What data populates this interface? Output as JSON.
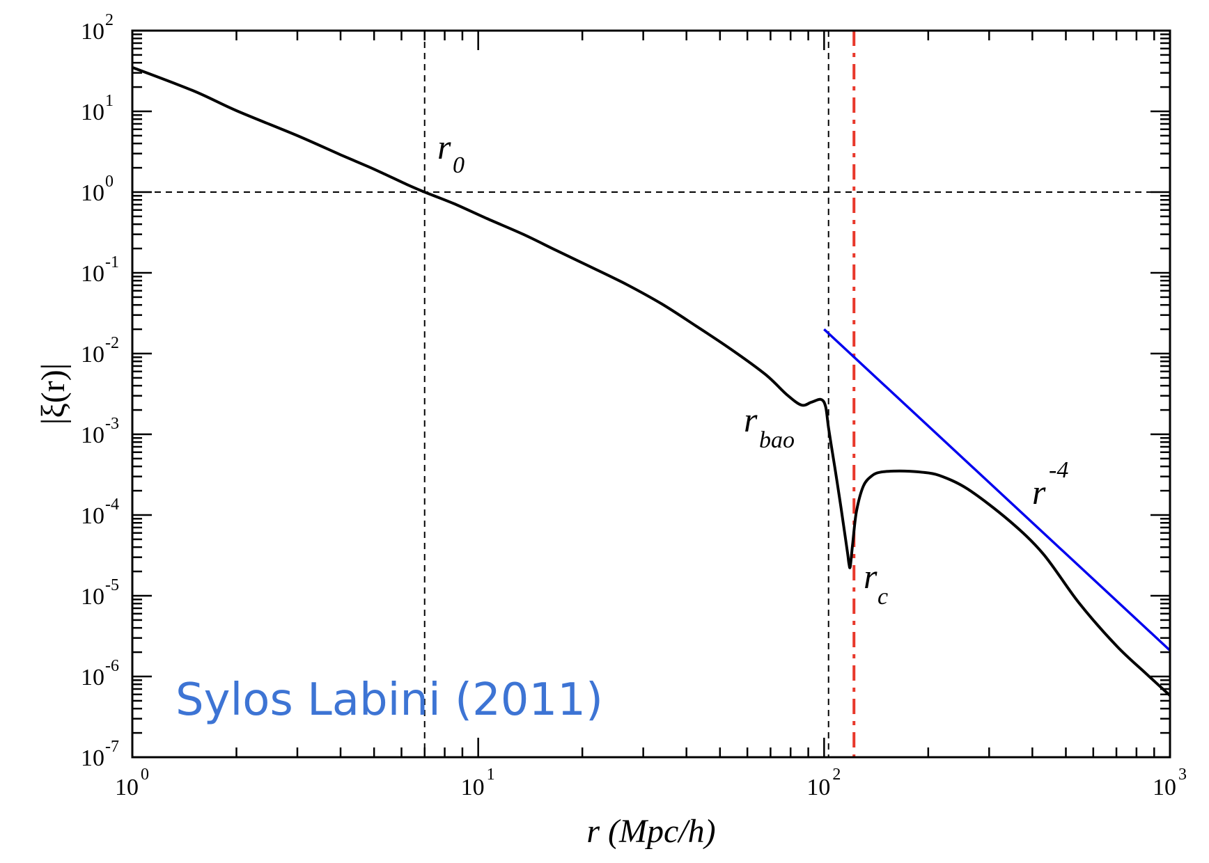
{
  "chart_data": {
    "type": "line",
    "title": "",
    "xlabel": "r (Mpc/h)",
    "ylabel": "|ξ(r)|",
    "xscale": "log",
    "yscale": "log",
    "xlim": [
      1,
      1000
    ],
    "ylim": [
      1e-07,
      100
    ],
    "grid": false,
    "x_ticks": [
      {
        "base": "10",
        "exp": "0",
        "value": 1
      },
      {
        "base": "10",
        "exp": "1",
        "value": 10
      },
      {
        "base": "10",
        "exp": "2",
        "value": 100
      },
      {
        "base": "10",
        "exp": "3",
        "value": 1000
      }
    ],
    "y_ticks": [
      {
        "base": "10",
        "exp": "2",
        "value": 100
      },
      {
        "base": "10",
        "exp": "1",
        "value": 10
      },
      {
        "base": "10",
        "exp": "0",
        "value": 1
      },
      {
        "base": "10",
        "exp": "-1",
        "value": 0.1
      },
      {
        "base": "10",
        "exp": "-2",
        "value": 0.01
      },
      {
        "base": "10",
        "exp": "-3",
        "value": 0.001
      },
      {
        "base": "10",
        "exp": "-4",
        "value": 0.0001
      },
      {
        "base": "10",
        "exp": "-5",
        "value": 1e-05
      },
      {
        "base": "10",
        "exp": "-6",
        "value": 1e-06
      },
      {
        "base": "10",
        "exp": "-7",
        "value": 1e-07
      }
    ],
    "series": [
      {
        "name": "|xi(r)|",
        "color": "#000000",
        "x": [
          1,
          1.5,
          2.0,
          3.0,
          4.0,
          4.83,
          5.4,
          6.2,
          7.0,
          8.5,
          10.6,
          13.5,
          16.8,
          21,
          26.8,
          34,
          42.6,
          53.5,
          67.7,
          78,
          86,
          92,
          98,
          101,
          103,
          106,
          109,
          112,
          115,
          117,
          118,
          119,
          121,
          124,
          130,
          138,
          146,
          160,
          171,
          190,
          215,
          260,
          343,
          430,
          545,
          700,
          850,
          1000
        ],
        "y": [
          35,
          18,
          10.2,
          5.0,
          2.9,
          2.05,
          1.65,
          1.25,
          1.0,
          0.72,
          0.47,
          0.3,
          0.19,
          0.12,
          0.072,
          0.041,
          0.022,
          0.0115,
          0.0055,
          0.0031,
          0.0023,
          0.0025,
          0.0027,
          0.0022,
          0.0012,
          0.00055,
          0.00026,
          0.00012,
          5.5e-05,
          3.3e-05,
          2.5e-05,
          2.3e-05,
          4.5e-05,
          0.00011,
          0.00023,
          0.00031,
          0.00034,
          0.00035,
          0.00035,
          0.00034,
          0.00031,
          0.00021,
          8.5e-05,
          3.3e-05,
          8.2e-06,
          2.4e-06,
          1.1e-06,
          5.8e-07
        ]
      },
      {
        "name": "r^-4",
        "color": "#0000ee",
        "x": [
          100,
          1000
        ],
        "y": [
          0.02,
          2.1e-06
        ]
      }
    ],
    "reference_lines": [
      {
        "name": "r0",
        "orientation": "vertical",
        "value": 7.0,
        "style": "dashed",
        "color": "#000000"
      },
      {
        "name": "rbao",
        "orientation": "vertical",
        "value": 103,
        "style": "dashed",
        "color": "#000000"
      },
      {
        "name": "unity",
        "orientation": "horizontal",
        "value": 1,
        "style": "dashed",
        "color": "#000000"
      },
      {
        "name": "rc",
        "orientation": "vertical",
        "value": 122,
        "style": "dashdot",
        "color": "#e8382b"
      }
    ],
    "annotations": [
      {
        "name": "r0",
        "base": "r",
        "sub": "0"
      },
      {
        "name": "rbao",
        "base": "r",
        "sub": "bao"
      },
      {
        "name": "rc",
        "base": "r",
        "sub": "c"
      },
      {
        "name": "power-law",
        "base": "r",
        "sup": "-4"
      }
    ]
  },
  "credit": {
    "text": "Sylos Labini (2011)",
    "color": "#3d74d4"
  }
}
